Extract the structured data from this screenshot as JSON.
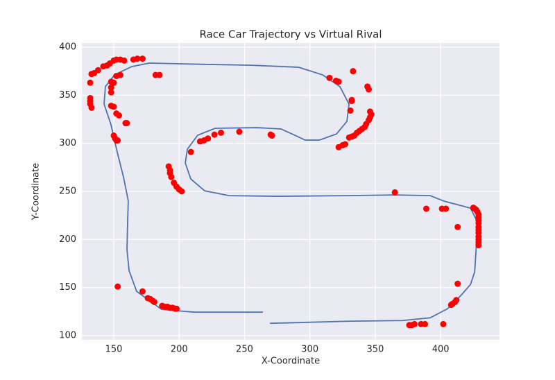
{
  "chart_data": {
    "type": "line",
    "title": "Race Car Trajectory vs Virtual Rival",
    "x_label": "X-Coordinate",
    "y_label": "Y-Coordinate",
    "xlim": [
      125.6,
      445
    ],
    "ylim": [
      95.7,
      404.3
    ],
    "xticks": [
      150,
      200,
      250,
      300,
      350,
      400
    ],
    "yticks": [
      100,
      150,
      200,
      250,
      300,
      350,
      400
    ],
    "grid": true,
    "series": [
      {
        "style": "line",
        "color": "#4c72b0",
        "x": [
          264.1,
          211.6,
          186.6,
          167.5,
          161.7,
          160.1,
          160.6,
          161.1,
          157.4,
          152.1,
          147.9,
          142.6,
          143.6,
          150.5,
          163.8,
          177.1,
          222.2,
          254.0,
          291.2,
          309.8,
          323.0,
          329.9,
          328.3,
          320.4,
          307.1,
          296.5,
          288.5,
          277.9,
          259.3,
          227.5,
          214.2,
          206.3,
          204.7,
          208.9,
          219.5,
          238.1,
          275.3,
          328.3,
          365.5,
          392.0,
          402.7,
          422.8,
          428.1,
          427.1,
          426.0,
          422.8,
          415.9,
          405.3,
          392.0,
          370.8,
          328.3,
          291.2,
          269.4
        ],
        "values": [
          124.4,
          124.4,
          127.3,
          146.0,
          167.7,
          189.3,
          218.2,
          240.2,
          265.1,
          293.9,
          319.2,
          340.8,
          358.9,
          371.1,
          379.8,
          383.4,
          382.0,
          381.2,
          379.1,
          371.1,
          358.9,
          340.8,
          322.8,
          309.8,
          303.3,
          303.3,
          308.4,
          314.9,
          316.3,
          315.6,
          308.4,
          293.9,
          279.5,
          262.9,
          250.6,
          245.6,
          244.9,
          245.6,
          246.3,
          245.6,
          239.8,
          232.6,
          218.2,
          189.3,
          166.2,
          153.2,
          142.4,
          128.0,
          118.6,
          115.7,
          115.0,
          113.6,
          112.8
        ]
      },
      {
        "style": "scatter",
        "color": "#ff0000",
        "x": [
          150,
          152,
          155,
          158,
          165,
          168,
          172,
          147,
          145,
          142,
          138,
          135,
          133,
          152,
          155,
          182,
          185,
          148,
          150,
          148,
          148,
          132,
          132,
          132,
          132,
          133,
          148,
          150,
          152,
          154,
          159,
          160,
          150,
          151,
          152,
          153,
          192,
          193,
          193,
          194,
          196,
          198,
          200,
          202,
          209,
          216,
          219,
          222,
          227,
          232,
          246,
          270,
          271,
          315,
          320,
          322,
          333,
          344,
          345,
          332,
          332,
          331,
          346,
          347,
          346,
          345,
          343,
          342,
          340,
          338,
          336,
          334,
          332,
          330,
          327,
          325,
          322,
          365,
          389,
          401,
          404,
          413,
          425,
          426,
          427,
          428,
          429,
          429,
          429,
          429,
          429,
          429,
          429,
          429,
          429,
          429,
          429,
          413,
          412,
          411,
          409,
          408,
          402,
          388,
          385,
          380,
          378,
          376,
          153,
          172,
          176,
          178,
          180,
          181,
          187,
          189,
          191,
          193,
          195,
          197,
          198
        ],
        "values": [
          386,
          387,
          387,
          386,
          387,
          388,
          388,
          383,
          381,
          380,
          376,
          373,
          372,
          370,
          371,
          371,
          371,
          364,
          363,
          358,
          353,
          363,
          347,
          344,
          341,
          337,
          339,
          338,
          331,
          329,
          321,
          321,
          308,
          305,
          303,
          303,
          276,
          272,
          269,
          265,
          259,
          255,
          252,
          250,
          291,
          302,
          303,
          305,
          309,
          311,
          312,
          309,
          308,
          368,
          365,
          364,
          375,
          359,
          356,
          345,
          344,
          334,
          333,
          330,
          327,
          324,
          320,
          317,
          315,
          313,
          311,
          308,
          307,
          306,
          299,
          298,
          296,
          249,
          232,
          232,
          232,
          213,
          233,
          232,
          231,
          229,
          226,
          223,
          220,
          217,
          213,
          210,
          207,
          203,
          200,
          197,
          194,
          154,
          137,
          135,
          133,
          132,
          112,
          112,
          112,
          112,
          111,
          111,
          151,
          146,
          139,
          138,
          136,
          135,
          131,
          130,
          130,
          129,
          129,
          128,
          128
        ]
      }
    ]
  }
}
